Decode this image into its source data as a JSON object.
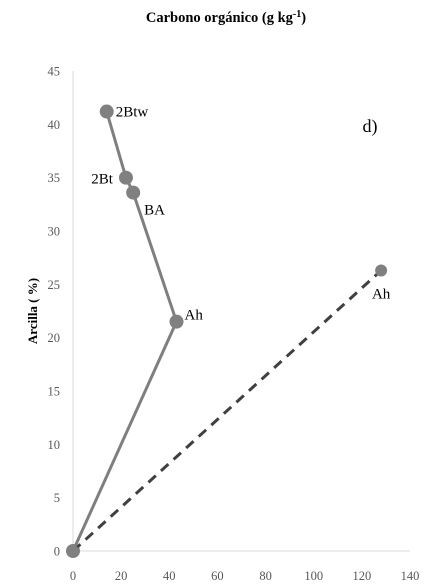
{
  "chart_data": {
    "type": "scatter",
    "title": {
      "main": "Carbono orgánico (g kg",
      "sup": "-1",
      "close": ")"
    },
    "xlabel": "",
    "ylabel": "Arcilla ( %)",
    "panel_label": "d)",
    "xlim": [
      0,
      140
    ],
    "ylim": [
      0,
      45
    ],
    "xticks": [
      "0",
      "20",
      "40",
      "60",
      "80",
      "100",
      "120",
      "140"
    ],
    "yticks": [
      "0",
      "5",
      "10",
      "15",
      "20",
      "25",
      "30",
      "35",
      "40",
      "45"
    ],
    "grid": false,
    "series": [
      {
        "style": "solid",
        "color": "#7f7f7f",
        "points": [
          {
            "x": 0,
            "y": 0,
            "label": ""
          },
          {
            "x": 43,
            "y": 21.5,
            "label": "Ah"
          },
          {
            "x": 25,
            "y": 33.6,
            "label": "BA"
          },
          {
            "x": 22,
            "y": 35,
            "label": "2Bt"
          },
          {
            "x": 14,
            "y": 41.2,
            "label": "2Btw"
          }
        ]
      },
      {
        "style": "dashed",
        "color": "#404040",
        "points": [
          {
            "x": 0,
            "y": 0,
            "label": ""
          },
          {
            "x": 128,
            "y": 26.3,
            "label": "Ah"
          }
        ]
      }
    ]
  }
}
